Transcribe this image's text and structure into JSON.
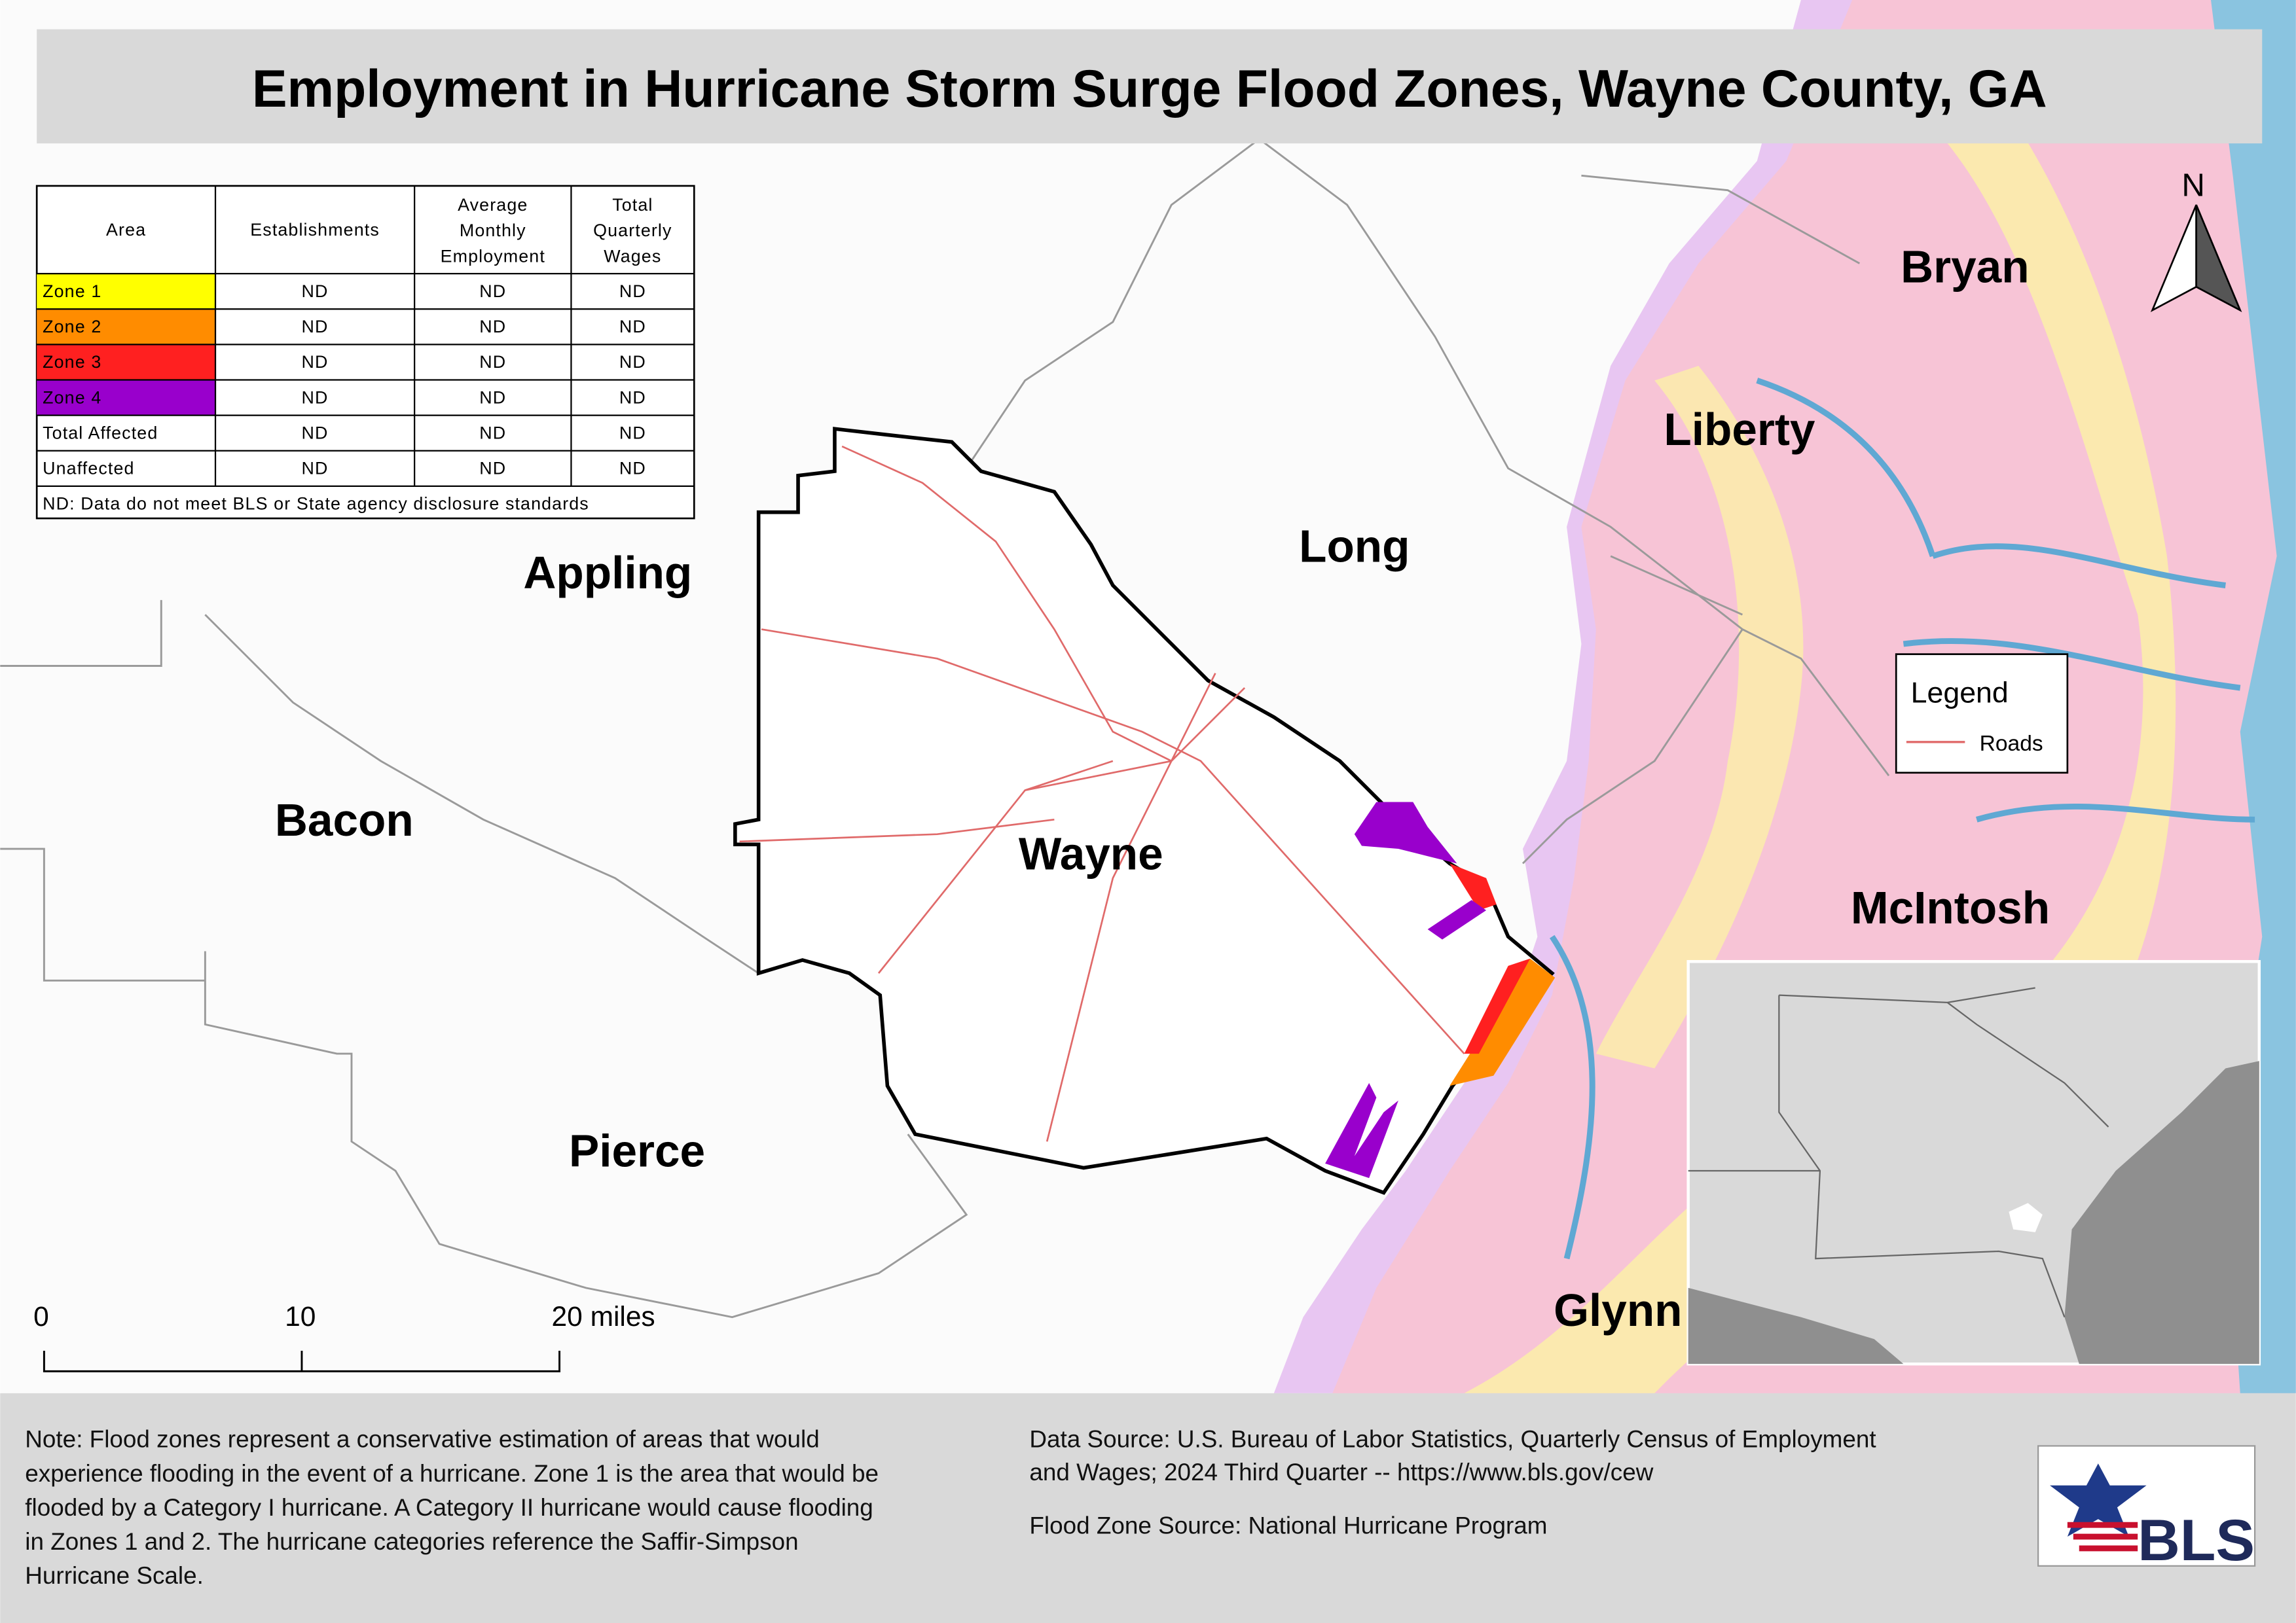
{
  "title": "Employment in Hurricane Storm Surge Flood Zones, Wayne County, GA",
  "table": {
    "header": [
      [
        "Area"
      ],
      [
        "Establishments"
      ],
      [
        "Average",
        "Monthly",
        "Employment"
      ],
      [
        "Total",
        "Quarterly",
        "Wages"
      ]
    ],
    "rows": [
      [
        "Zone 1",
        "ND",
        "ND",
        "ND"
      ],
      [
        "Zone 2",
        "ND",
        "ND",
        "ND"
      ],
      [
        "Zone 3",
        "ND",
        "ND",
        "ND"
      ],
      [
        "Zone 4",
        "ND",
        "ND",
        "ND"
      ],
      [
        "Total Affected",
        "ND",
        "ND",
        "ND"
      ],
      [
        "Unaffected",
        "ND",
        "ND",
        "ND"
      ]
    ],
    "footnote": "ND: Data do not meet BLS or State agency disclosure standards"
  },
  "counties": [
    "Appling",
    "Bacon",
    "Pierce",
    "Wayne",
    "Long",
    "Liberty",
    "Bryan",
    "McIntosh",
    "Glynn"
  ],
  "legend": {
    "title": "Legend",
    "items": [
      "Roads"
    ]
  },
  "north_arrow": "N",
  "scale_bar": [
    "0",
    "10",
    "20 miles"
  ],
  "note": [
    "Note: Flood zones represent a conservative estimation of areas that would",
    "experience flooding in the event of a hurricane. Zone 1 is the area that would be",
    "flooded by a Category I hurricane. A Category II hurricane would cause flooding",
    "in Zones 1 and 2. The hurricane categories reference the Saffir-Simpson",
    "Hurricane Scale."
  ],
  "data_source": [
    "Data Source: U.S. Bureau of Labor Statistics, Quarterly Census of Employment",
    "and Wages; 2024 Third Quarter -- https://www.bls.gov/cew"
  ],
  "flood_zone_source": "Flood Zone Source: National Hurricane Program",
  "logo": "BLS"
}
